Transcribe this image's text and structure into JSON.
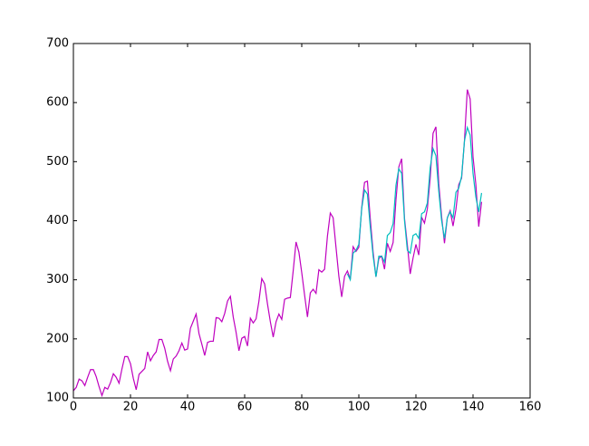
{
  "chart_data": {
    "type": "line",
    "xlim": [
      0,
      160
    ],
    "xticks": [
      0,
      20,
      40,
      60,
      80,
      100,
      120,
      140,
      160
    ],
    "ylim": [
      100,
      700
    ],
    "yticks": [
      100,
      200,
      300,
      400,
      500,
      600,
      700
    ],
    "grid": false,
    "series": [
      {
        "color": "#bf00bf",
        "x": [
          0,
          1,
          2,
          3,
          4,
          5,
          6,
          7,
          8,
          9,
          10,
          11,
          12,
          13,
          14,
          15,
          16,
          17,
          18,
          19,
          20,
          21,
          22,
          23,
          24,
          25,
          26,
          27,
          28,
          29,
          30,
          31,
          32,
          33,
          34,
          35,
          36,
          37,
          38,
          39,
          40,
          41,
          42,
          43,
          44,
          45,
          46,
          47,
          48,
          49,
          50,
          51,
          52,
          53,
          54,
          55,
          56,
          57,
          58,
          59,
          60,
          61,
          62,
          63,
          64,
          65,
          66,
          67,
          68,
          69,
          70,
          71,
          72,
          73,
          74,
          75,
          76,
          77,
          78,
          79,
          80,
          81,
          82,
          83,
          84,
          85,
          86,
          87,
          88,
          89,
          90,
          91,
          92,
          93,
          94,
          95,
          96,
          97,
          98,
          99,
          100,
          101,
          102,
          103,
          104,
          105,
          106,
          107,
          108,
          109,
          110,
          111,
          112,
          113,
          114,
          115,
          116,
          117,
          118,
          119,
          120,
          121,
          122,
          123,
          124,
          125,
          126,
          127,
          128,
          129,
          130,
          131,
          132,
          133,
          134,
          135,
          136,
          137,
          138,
          139,
          140,
          141,
          142,
          143
        ],
        "values": [
          112,
          118,
          132,
          129,
          121,
          135,
          148,
          148,
          136,
          119,
          104,
          118,
          115,
          126,
          141,
          135,
          125,
          149,
          170,
          170,
          158,
          133,
          114,
          140,
          145,
          150,
          178,
          163,
          172,
          178,
          199,
          199,
          184,
          162,
          146,
          166,
          171,
          180,
          193,
          181,
          183,
          218,
          230,
          242,
          209,
          191,
          172,
          194,
          196,
          196,
          236,
          235,
          229,
          243,
          264,
          272,
          237,
          211,
          180,
          201,
          204,
          188,
          235,
          227,
          234,
          264,
          302,
          293,
          259,
          229,
          203,
          229,
          242,
          233,
          267,
          269,
          270,
          315,
          364,
          347,
          312,
          274,
          237,
          278,
          284,
          277,
          317,
          313,
          318,
          374,
          413,
          405,
          355,
          306,
          271,
          306,
          315,
          301,
          356,
          348,
          355,
          422,
          465,
          467,
          404,
          347,
          305,
          336,
          340,
          318,
          362,
          348,
          363,
          435,
          491,
          505,
          404,
          359,
          310,
          337,
          360,
          342,
          406,
          396,
          420,
          472,
          548,
          559,
          463,
          407,
          362,
          405,
          417,
          391,
          419,
          461,
          472,
          535,
          622,
          606,
          508,
          461,
          390,
          432
        ]
      },
      {
        "color": "#00bfbf",
        "x": [
          96,
          97,
          98,
          99,
          100,
          101,
          102,
          103,
          104,
          105,
          106,
          107,
          108,
          109,
          110,
          111,
          112,
          113,
          114,
          115,
          116,
          117,
          118,
          119,
          120,
          121,
          122,
          123,
          124,
          125,
          126,
          127,
          128,
          129,
          130,
          131,
          132,
          133,
          134,
          135,
          136,
          137,
          138,
          139,
          140,
          141,
          142,
          143
        ],
        "values": [
          310,
          300,
          345,
          350,
          360,
          420,
          452,
          445,
          390,
          340,
          305,
          340,
          340,
          330,
          375,
          380,
          395,
          460,
          488,
          480,
          400,
          350,
          345,
          375,
          378,
          370,
          412,
          415,
          430,
          490,
          522,
          510,
          450,
          400,
          370,
          405,
          415,
          405,
          448,
          455,
          475,
          535,
          558,
          545,
          480,
          440,
          415,
          447
        ]
      }
    ]
  }
}
